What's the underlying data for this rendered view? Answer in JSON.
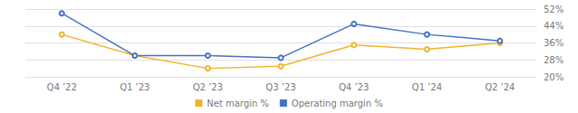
{
  "chart_data": {
    "type": "line",
    "categories": [
      "Q4 ’22",
      "Q1 ’23",
      "Q2 ’23",
      "Q3 ’23",
      "Q4 ’23",
      "Q1 ’24",
      "Q2 ’24"
    ],
    "series": [
      {
        "name": "Net margin %",
        "color": "#f0b429",
        "values": [
          40,
          30,
          24,
          25,
          35,
          33,
          36
        ]
      },
      {
        "name": "Operating margin %",
        "color": "#4472c4",
        "values": [
          50,
          30,
          30,
          29,
          45,
          40,
          37
        ]
      }
    ],
    "ylim": [
      20,
      52
    ],
    "yticks": [
      {
        "value": 20,
        "label": "20%"
      },
      {
        "value": 28,
        "label": "28%"
      },
      {
        "value": 36,
        "label": "36%"
      },
      {
        "value": 44,
        "label": "44%"
      },
      {
        "value": 52,
        "label": "52%"
      }
    ],
    "grid": true,
    "legend": "bottom",
    "marker": "circle"
  }
}
